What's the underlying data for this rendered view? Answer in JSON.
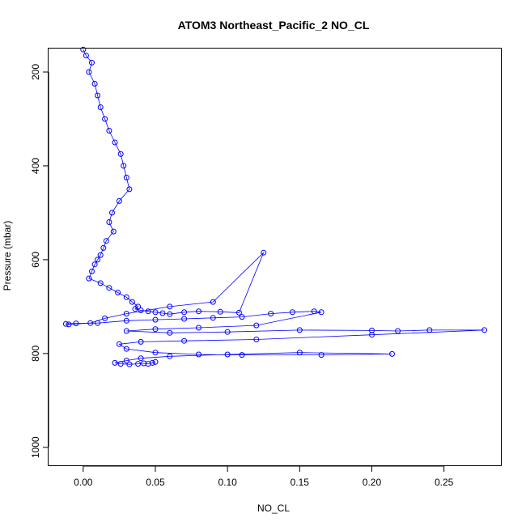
{
  "chart_data": {
    "type": "scatter",
    "title": "ATOM3 Northeast_Pacific_2 NO_CL",
    "xlabel": "NO_CL",
    "ylabel": "Pressure (mbar)",
    "xlim": [
      -0.024,
      0.29
    ],
    "ylim": [
      1040,
      150
    ],
    "y_reversed": true,
    "grid": false,
    "legend": "none",
    "marker": "open-circle",
    "connected": true,
    "color": "#0000ff",
    "x_ticks": [
      "0.00",
      "0.05",
      "0.10",
      "0.15",
      "0.20",
      "0.25"
    ],
    "x_tick_values": [
      0,
      0.05,
      0.1,
      0.15,
      0.2,
      0.25
    ],
    "y_ticks": [
      "200",
      "400",
      "600",
      "800",
      "1000"
    ],
    "y_tick_values": [
      200,
      400,
      600,
      800,
      1000
    ],
    "series": [
      {
        "x": [
          0.0,
          0.002,
          0.006,
          0.004,
          0.008,
          0.01,
          0.012,
          0.015,
          0.018,
          0.022,
          0.026,
          0.028,
          0.03,
          0.032,
          0.025,
          0.02,
          0.018,
          0.021,
          0.016,
          0.014,
          0.012,
          0.01,
          0.008,
          0.006,
          0.004,
          0.012,
          0.018,
          0.024,
          0.03,
          0.034,
          0.038,
          0.036,
          0.04,
          0.045,
          0.05,
          0.055,
          0.06,
          0.07,
          0.08,
          0.095,
          0.108,
          0.125,
          0.09,
          0.06,
          0.03,
          0.015,
          0.005,
          -0.01,
          -0.012,
          -0.005,
          0.01,
          0.03,
          0.05,
          0.07,
          0.09,
          0.11,
          0.13,
          0.145,
          0.16,
          0.165,
          0.12,
          0.08,
          0.05,
          0.03,
          0.06,
          0.1,
          0.15,
          0.2,
          0.218,
          0.24,
          0.278,
          0.2,
          0.12,
          0.07,
          0.04,
          0.025,
          0.03,
          0.05,
          0.08,
          0.11,
          0.165,
          0.214,
          0.15,
          0.1,
          0.06,
          0.04,
          0.03,
          0.022,
          0.026,
          0.032,
          0.038,
          0.042,
          0.045,
          0.048,
          0.05
        ],
        "y": [
          152,
          165,
          180,
          200,
          225,
          250,
          275,
          300,
          325,
          350,
          375,
          400,
          425,
          450,
          475,
          500,
          520,
          540,
          560,
          575,
          590,
          600,
          610,
          625,
          640,
          650,
          660,
          670,
          680,
          690,
          700,
          705,
          708,
          710,
          712,
          714,
          716,
          712,
          710,
          711,
          713,
          585,
          690,
          700,
          715,
          725,
          735,
          738,
          737,
          736,
          735,
          730,
          728,
          726,
          724,
          722,
          715,
          712,
          710,
          712,
          740,
          745,
          748,
          752,
          756,
          754,
          750,
          751,
          752,
          750,
          750,
          760,
          770,
          773,
          775,
          780,
          790,
          798,
          802,
          803,
          803,
          801,
          798,
          802,
          806,
          810,
          815,
          820,
          822,
          823,
          822,
          821,
          822,
          820,
          818
        ]
      }
    ]
  }
}
